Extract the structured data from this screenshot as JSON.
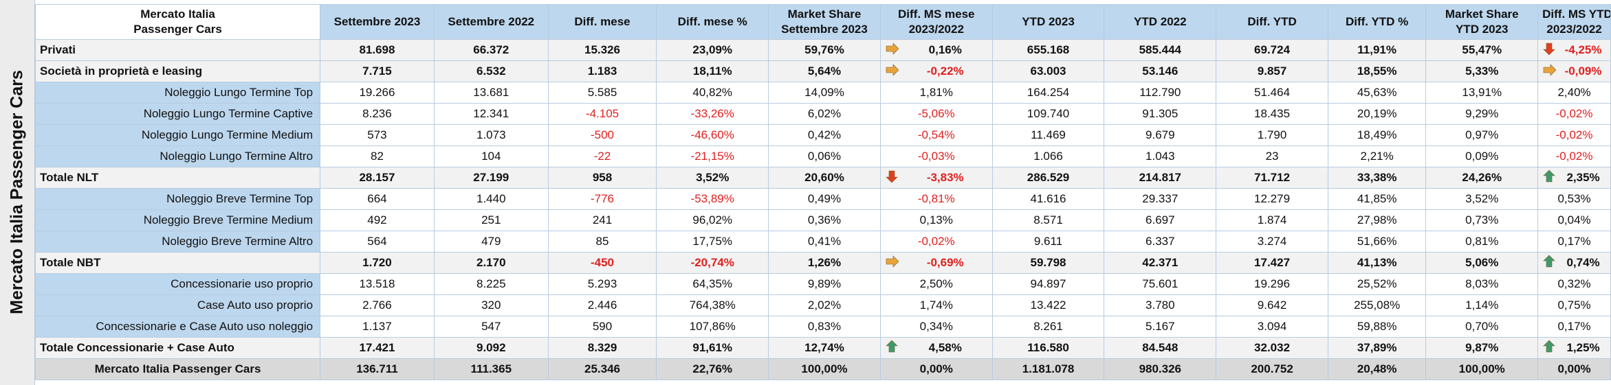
{
  "side_label": "Mercato Italia Passenger Cars",
  "header": {
    "corner_line1": "Mercato Italia",
    "corner_line2": "Passenger Cars",
    "columns": [
      [
        "Settembre 2023"
      ],
      [
        "Settembre 2022"
      ],
      [
        "Diff. mese"
      ],
      [
        "Diff. mese %"
      ],
      [
        "Market Share",
        "Settembre 2023"
      ],
      [
        "Diff. MS mese",
        "2023/2022"
      ],
      [
        "YTD 2023"
      ],
      [
        "YTD 2022"
      ],
      [
        "Diff. YTD"
      ],
      [
        "Diff. YTD %"
      ],
      [
        "Market Share",
        "YTD 2023"
      ],
      [
        "Diff. MS YTD",
        "2023/2022"
      ]
    ]
  },
  "rows": [
    {
      "style": "bold",
      "label": "Privati",
      "cells": [
        "81.698",
        "66.372",
        "15.326",
        "23,09%",
        "59,76%",
        "0,16%",
        "655.168",
        "585.444",
        "69.724",
        "11,91%",
        "55,47%",
        "-4,25%"
      ],
      "neg": [
        11
      ],
      "icon_ms": "arrow-right",
      "icon_ytd": "arrow-down"
    },
    {
      "style": "bold",
      "label": "Società in proprietà e leasing",
      "cells": [
        "7.715",
        "6.532",
        "1.183",
        "18,11%",
        "5,64%",
        "-0,22%",
        "63.003",
        "53.146",
        "9.857",
        "18,55%",
        "5,33%",
        "-0,09%"
      ],
      "neg": [
        5,
        11
      ],
      "icon_ms": "arrow-right",
      "icon_ytd": "arrow-right"
    },
    {
      "style": "sub",
      "label": "Noleggio Lungo Termine Top",
      "cells": [
        "19.266",
        "13.681",
        "5.585",
        "40,82%",
        "14,09%",
        "1,81%",
        "164.254",
        "112.790",
        "51.464",
        "45,63%",
        "13,91%",
        "2,40%"
      ],
      "neg": []
    },
    {
      "style": "sub",
      "label": "Noleggio Lungo Termine Captive",
      "cells": [
        "8.236",
        "12.341",
        "-4.105",
        "-33,26%",
        "6,02%",
        "-5,06%",
        "109.740",
        "91.305",
        "18.435",
        "20,19%",
        "9,29%",
        "-0,02%"
      ],
      "neg": [
        2,
        3,
        5,
        11
      ]
    },
    {
      "style": "sub",
      "label": "Noleggio Lungo Termine Medium",
      "cells": [
        "573",
        "1.073",
        "-500",
        "-46,60%",
        "0,42%",
        "-0,54%",
        "11.469",
        "9.679",
        "1.790",
        "18,49%",
        "0,97%",
        "-0,02%"
      ],
      "neg": [
        2,
        3,
        5,
        11
      ]
    },
    {
      "style": "sub",
      "label": "Noleggio Lungo Termine Altro",
      "cells": [
        "82",
        "104",
        "-22",
        "-21,15%",
        "0,06%",
        "-0,03%",
        "1.066",
        "1.043",
        "23",
        "2,21%",
        "0,09%",
        "-0,02%"
      ],
      "neg": [
        2,
        3,
        5,
        11
      ]
    },
    {
      "style": "bold",
      "label": "Totale NLT",
      "cells": [
        "28.157",
        "27.199",
        "958",
        "3,52%",
        "20,60%",
        "-3,83%",
        "286.529",
        "214.817",
        "71.712",
        "33,38%",
        "24,26%",
        "2,35%"
      ],
      "neg": [
        5
      ],
      "icon_ms": "arrow-down",
      "icon_ytd": "arrow-up"
    },
    {
      "style": "sub",
      "label": "Noleggio Breve Termine Top",
      "cells": [
        "664",
        "1.440",
        "-776",
        "-53,89%",
        "0,49%",
        "-0,81%",
        "41.616",
        "29.337",
        "12.279",
        "41,85%",
        "3,52%",
        "0,53%"
      ],
      "neg": [
        2,
        3,
        5
      ]
    },
    {
      "style": "sub",
      "label": "Noleggio Breve Termine Medium",
      "cells": [
        "492",
        "251",
        "241",
        "96,02%",
        "0,36%",
        "0,13%",
        "8.571",
        "6.697",
        "1.874",
        "27,98%",
        "0,73%",
        "0,04%"
      ],
      "neg": []
    },
    {
      "style": "sub",
      "label": "Noleggio Breve Termine Altro",
      "cells": [
        "564",
        "479",
        "85",
        "17,75%",
        "0,41%",
        "-0,02%",
        "9.611",
        "6.337",
        "3.274",
        "51,66%",
        "0,81%",
        "0,17%"
      ],
      "neg": [
        5
      ]
    },
    {
      "style": "bold",
      "label": "Totale NBT",
      "cells": [
        "1.720",
        "2.170",
        "-450",
        "-20,74%",
        "1,26%",
        "-0,69%",
        "59.798",
        "42.371",
        "17.427",
        "41,13%",
        "5,06%",
        "0,74%"
      ],
      "neg": [
        2,
        3,
        5
      ],
      "icon_ms": "arrow-right",
      "icon_ytd": "arrow-up"
    },
    {
      "style": "sub",
      "label": "Concessionarie uso proprio",
      "cells": [
        "13.518",
        "8.225",
        "5.293",
        "64,35%",
        "9,89%",
        "2,50%",
        "94.897",
        "75.601",
        "19.296",
        "25,52%",
        "8,03%",
        "0,32%"
      ],
      "neg": []
    },
    {
      "style": "sub",
      "label": "Case Auto uso proprio",
      "cells": [
        "2.766",
        "320",
        "2.446",
        "764,38%",
        "2,02%",
        "1,74%",
        "13.422",
        "3.780",
        "9.642",
        "255,08%",
        "1,14%",
        "0,75%"
      ],
      "neg": []
    },
    {
      "style": "sub",
      "label": "Concessionarie e Case Auto uso noleggio",
      "cells": [
        "1.137",
        "547",
        "590",
        "107,86%",
        "0,83%",
        "0,34%",
        "8.261",
        "5.167",
        "3.094",
        "59,88%",
        "0,70%",
        "0,17%"
      ],
      "neg": []
    },
    {
      "style": "bold",
      "label": "Totale Concessionarie + Case Auto",
      "cells": [
        "17.421",
        "9.092",
        "8.329",
        "91,61%",
        "12,74%",
        "4,58%",
        "116.580",
        "84.548",
        "32.032",
        "37,89%",
        "9,87%",
        "1,25%"
      ],
      "neg": [],
      "icon_ms": "arrow-up",
      "icon_ytd": "arrow-up"
    },
    {
      "style": "total",
      "label": "Mercato Italia Passenger Cars",
      "cells": [
        "136.711",
        "111.365",
        "25.346",
        "22,76%",
        "100,00%",
        "0,00%",
        "1.181.078",
        "980.326",
        "200.752",
        "20,48%",
        "100,00%",
        "0,00%"
      ],
      "neg": []
    }
  ],
  "icon_colors": {
    "arrow-right": "#e8a33a",
    "arrow-down": "#e0401f",
    "arrow-up": "#3f9a6b"
  }
}
